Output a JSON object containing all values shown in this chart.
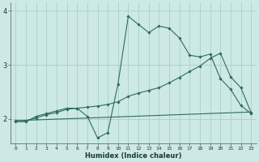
{
  "xlabel": "Humidex (Indice chaleur)",
  "bg_color": "#cce9e5",
  "line_color": "#2e6b60",
  "grid_color": "#aacfcb",
  "xlim": [
    -0.5,
    23.5
  ],
  "ylim": [
    1.55,
    4.15
  ],
  "yticks": [
    2,
    3,
    4
  ],
  "xticks": [
    0,
    1,
    2,
    3,
    4,
    5,
    6,
    7,
    8,
    9,
    10,
    11,
    12,
    13,
    14,
    15,
    16,
    17,
    18,
    19,
    20,
    21,
    22,
    23
  ],
  "line1_x": [
    0,
    1,
    2,
    3,
    4,
    5,
    6,
    7,
    8,
    9,
    10,
    11,
    12,
    13,
    14,
    15,
    16,
    17,
    18,
    19,
    20,
    21,
    22,
    23
  ],
  "line1_y": [
    1.95,
    1.95,
    2.05,
    2.1,
    2.15,
    2.2,
    2.2,
    2.05,
    1.65,
    1.75,
    2.65,
    3.9,
    3.75,
    3.6,
    3.72,
    3.68,
    3.5,
    3.18,
    3.15,
    3.2,
    2.75,
    2.55,
    2.25,
    2.1
  ],
  "line2_x": [
    0,
    1,
    2,
    3,
    4,
    5,
    6,
    7,
    8,
    9,
    10,
    11,
    12,
    13,
    14,
    15,
    16,
    17,
    18,
    19,
    20,
    21,
    22,
    23
  ],
  "line2_y": [
    1.97,
    1.97,
    2.02,
    2.08,
    2.12,
    2.18,
    2.2,
    2.22,
    2.24,
    2.27,
    2.32,
    2.42,
    2.48,
    2.53,
    2.58,
    2.67,
    2.77,
    2.88,
    2.98,
    3.12,
    3.22,
    2.78,
    2.58,
    2.12
  ],
  "line3_x": [
    0,
    23
  ],
  "line3_y": [
    1.97,
    2.13
  ],
  "figsize": [
    3.2,
    2.0
  ],
  "dpi": 100
}
